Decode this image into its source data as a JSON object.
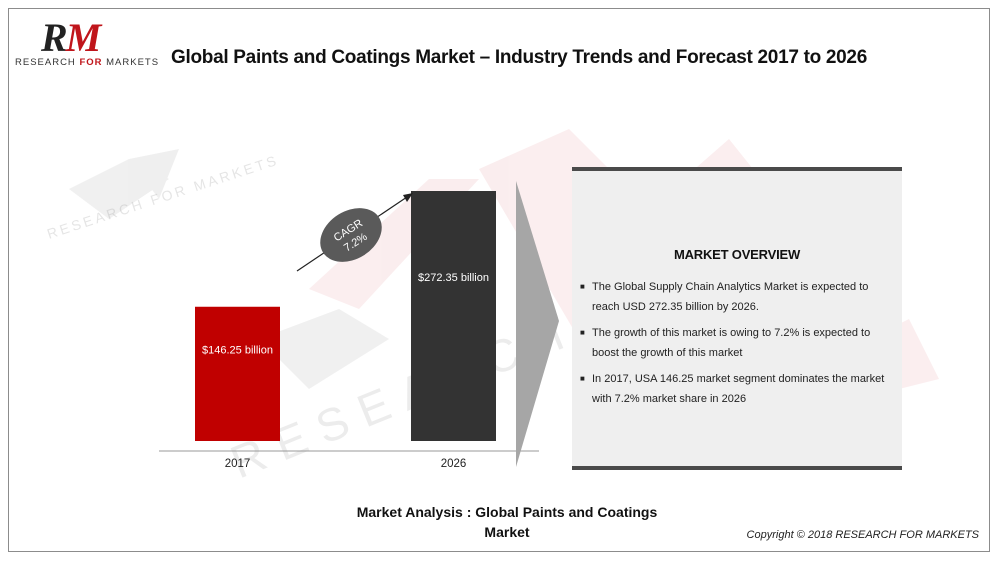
{
  "logo": {
    "letters_r": "R",
    "letters_m": "M",
    "tagline_left": "RESEARCH ",
    "tagline_mid": "FOR",
    "tagline_right": " MARKETS"
  },
  "title": "Global Paints and Coatings Market – Industry Trends and Forecast 2017 to 2026",
  "chart_data": {
    "type": "bar",
    "categories": [
      "2017",
      "2026"
    ],
    "values": [
      146.25,
      272.35
    ],
    "data_labels": [
      "$146.25 billion",
      "$272.35 billion"
    ],
    "colors": [
      "#c00000",
      "#333333"
    ],
    "ylim": [
      0,
      272.35
    ],
    "cagr_label": "CAGR",
    "cagr_value": "7.2%",
    "cagr_color": "#5a5a5a"
  },
  "overview": {
    "title": "MARKET OVERVIEW",
    "bullets": [
      "The Global Supply Chain Analytics Market is expected to reach USD 272.35 billion by 2026.",
      "The growth of this market is owing to 7.2% is expected to boost the growth of this market",
      "In 2017, USA 146.25 market segment dominates the market with 7.2% market share in 2026"
    ]
  },
  "caption": "Market Analysis : Global Paints and Coatings Market",
  "copyright": "Copyright © 2018 RESEARCH FOR MARKETS",
  "colors": {
    "accent": "#c0151b",
    "dark": "#333333",
    "panel": "#efefef"
  }
}
